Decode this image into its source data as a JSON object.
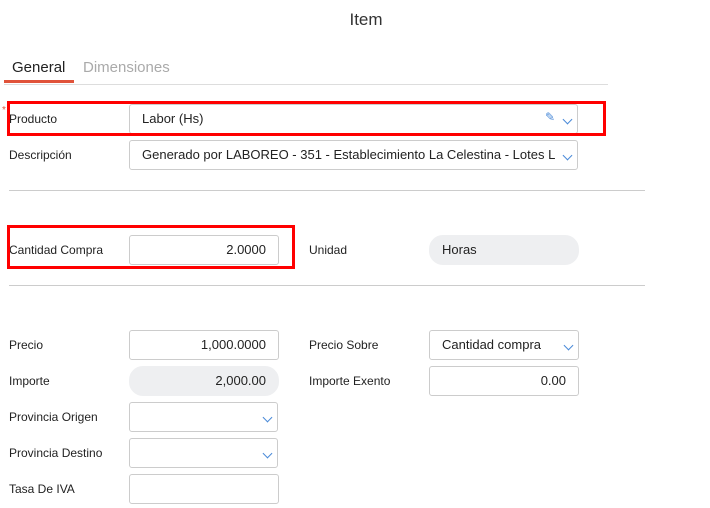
{
  "title": "Item",
  "tabs": [
    {
      "label": "General",
      "active": true
    },
    {
      "label": "Dimensiones",
      "active": false
    }
  ],
  "colors": {
    "accent": "#e0533a",
    "highlight": "#ff0000"
  },
  "fields": {
    "producto": {
      "label": "Producto",
      "value": "Labor (Hs)",
      "required": true
    },
    "descripcion": {
      "label": "Descripción",
      "value": "Generado por LABOREO - 351 - Establecimiento La Celestina - Lotes L"
    },
    "cantidad": {
      "label": "Cantidad Compra",
      "value": "2.0000"
    },
    "unidad": {
      "label": "Unidad",
      "value": "Horas"
    },
    "precio": {
      "label": "Precio",
      "value": "1,000.0000"
    },
    "precio_sobre": {
      "label": "Precio Sobre",
      "value": "Cantidad compra"
    },
    "importe": {
      "label": "Importe",
      "value": "2,000.00"
    },
    "importe_exento": {
      "label": "Importe Exento",
      "value": "0.00"
    },
    "provincia_origen": {
      "label": "Provincia Origen",
      "value": ""
    },
    "provincia_destino": {
      "label": "Provincia Destino",
      "value": ""
    },
    "tasa_iva": {
      "label": "Tasa De IVA",
      "value": ""
    }
  }
}
